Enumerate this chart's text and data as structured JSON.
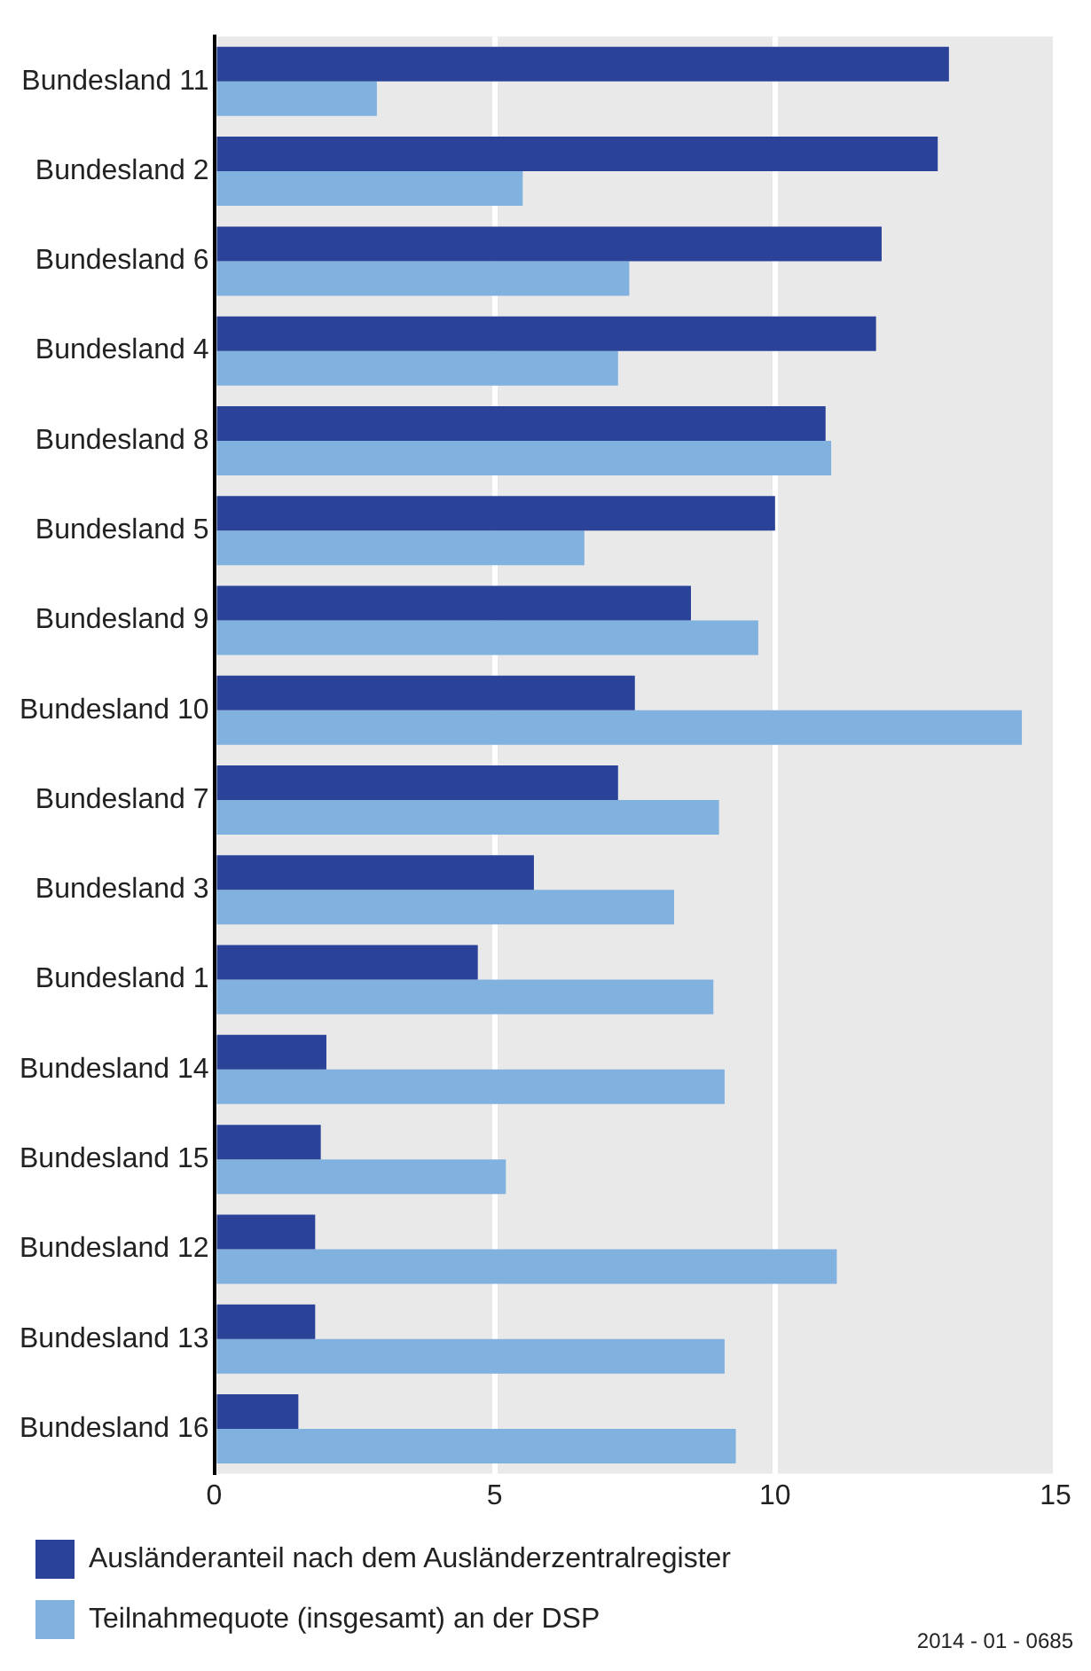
{
  "chart_data": {
    "type": "bar",
    "orientation": "horizontal",
    "categories": [
      "Bundesland 11",
      "Bundesland 2",
      "Bundesland 6",
      "Bundesland 4",
      "Bundesland 8",
      "Bundesland 5",
      "Bundesland 9",
      "Bundesland 10",
      "Bundesland 7",
      "Bundesland 3",
      "Bundesland 1",
      "Bundesland 14",
      "Bundesland 15",
      "Bundesland 12",
      "Bundesland 13",
      "Bundesland 16"
    ],
    "series": [
      {
        "name": "Ausländeranteil nach dem Ausländerzentralregister",
        "color": "#2a4399",
        "values": [
          13.1,
          12.9,
          11.9,
          11.8,
          10.9,
          10.0,
          8.5,
          7.5,
          7.2,
          5.7,
          4.7,
          2.0,
          1.9,
          1.8,
          1.8,
          1.5
        ]
      },
      {
        "name": "Teilnahmequote (insgesamt) an der DSP",
        "color": "#80b1df",
        "values": [
          2.9,
          5.5,
          7.4,
          7.2,
          11.0,
          6.6,
          9.7,
          14.4,
          9.0,
          8.2,
          8.9,
          9.1,
          5.2,
          11.1,
          9.1,
          9.3
        ]
      }
    ],
    "xlim": [
      0,
      15
    ],
    "xticks": [
      0,
      5,
      10,
      15
    ],
    "grid": "x",
    "legend": "bottom",
    "annotations": [
      "2014 - 01 - 0685"
    ]
  }
}
